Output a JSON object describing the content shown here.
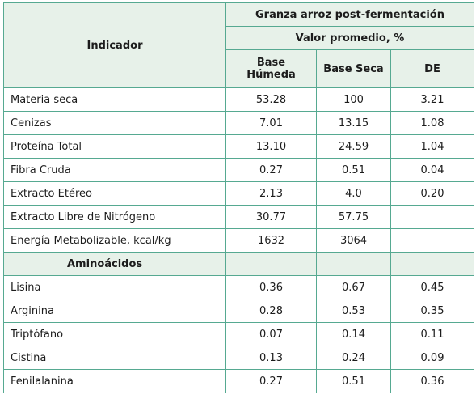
{
  "header": {
    "indicator": "Indicador",
    "group": "Granza arroz post-fermentación",
    "subgroup": "Valor promedio, %",
    "col_humeda": "Base Húmeda",
    "col_seca": "Base Seca",
    "col_de": "DE"
  },
  "rows": [
    {
      "label": "Materia seca",
      "humeda": "53.28",
      "seca": "100",
      "de": "3.21"
    },
    {
      "label": "Cenizas",
      "humeda": "7.01",
      "seca": "13.15",
      "de": "1.08"
    },
    {
      "label": "Proteína Total",
      "humeda": "13.10",
      "seca": "24.59",
      "de": "1.04"
    },
    {
      "label": "Fibra Cruda",
      "humeda": "0.27",
      "seca": "0.51",
      "de": "0.04"
    },
    {
      "label": "Extracto Etéreo",
      "humeda": "2.13",
      "seca": "4.0",
      "de": "0.20"
    },
    {
      "label": "Extracto Libre de Nitrógeno",
      "humeda": "30.77",
      "seca": "57.75",
      "de": ""
    },
    {
      "label": "Energía Metabolizable, kcal/kg",
      "humeda": "1632",
      "seca": "3064",
      "de": ""
    }
  ],
  "section_label": "Aminoácidos",
  "amino_rows": [
    {
      "label": "Lisina",
      "humeda": "0.36",
      "seca": "0.67",
      "de": "0.45"
    },
    {
      "label": "Arginina",
      "humeda": "0.28",
      "seca": "0.53",
      "de": "0.35"
    },
    {
      "label": "Triptófano",
      "humeda": "0.07",
      "seca": "0.14",
      "de": "0.11"
    },
    {
      "label": "Cistina",
      "humeda": "0.13",
      "seca": "0.24",
      "de": "0.09"
    },
    {
      "label": "Fenilalanina",
      "humeda": "0.27",
      "seca": "0.51",
      "de": "0.36"
    }
  ]
}
